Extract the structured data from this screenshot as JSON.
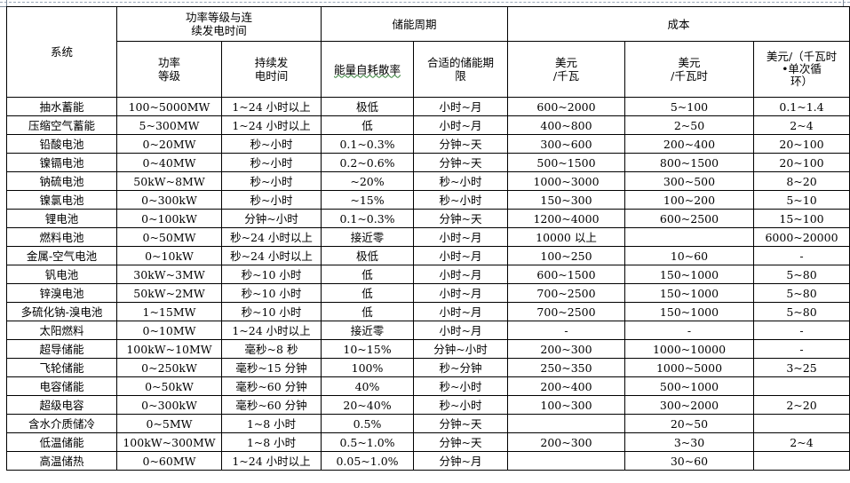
{
  "header": {
    "system": "系统",
    "power_group": "功率等级与连\n续发电时间",
    "storage_group": "储能周期",
    "cost_group": "成本",
    "power_level": "功率\n等级",
    "duration": "持续发\n电时间",
    "self_discharge": "能量自耗散率",
    "suitable_period": "合适的储能期\n限",
    "cost_per_kw": "美元\n/千瓦",
    "cost_per_kwh": "美元\n/千瓦时",
    "cost_per_cycle": "美元/（千瓦时\n•单次循\n环）"
  },
  "rows": [
    [
      "抽水蓄能",
      "100~5000MW",
      "1~24 小时以上",
      "极低",
      "小时~月",
      "600~2000",
      "5~100",
      "0.1~1.4"
    ],
    [
      "压缩空气蓄能",
      "5~300MW",
      "1~24 小时以上",
      "低",
      "小时~月",
      "400~800",
      "2~50",
      "2~4"
    ],
    [
      "铅酸电池",
      "0~20MW",
      "秒~小时",
      "0.1~0.3%",
      "分钟~天",
      "300~600",
      "200~400",
      "20~100"
    ],
    [
      "镍镉电池",
      "0~40MW",
      "秒~小时",
      "0.2~0.6%",
      "分钟~天",
      "500~1500",
      "800~1500",
      "20~100"
    ],
    [
      "钠硫电池",
      "50kW~8MW",
      "秒~小时",
      "~20%",
      "秒~小时",
      "1000~3000",
      "300~500",
      "8~20"
    ],
    [
      "镍氯电池",
      "0~300kW",
      "秒~小时",
      "~15%",
      "秒~小时",
      "150~300",
      "100~200",
      "5~10"
    ],
    [
      "锂电池",
      "0~100kW",
      "分钟~小时",
      "0.1~0.3%",
      "分钟~天",
      "1200~4000",
      "600~2500",
      "15~100"
    ],
    [
      "燃料电池",
      "0~50MW",
      "秒~24 小时以上",
      "接近零",
      "小时~月",
      "10000 以上",
      "",
      "6000~20000"
    ],
    [
      "金属-空气电池",
      "0~10kW",
      "秒~24 小时以上",
      "极低",
      "小时~月",
      "100~250",
      "10~60",
      "-"
    ],
    [
      "钒电池",
      "30kW~3MW",
      "秒~10 小时",
      "低",
      "小时~月",
      "600~1500",
      "150~1000",
      "5~80"
    ],
    [
      "锌溴电池",
      "50kW~2MW",
      "秒~10 小时",
      "低",
      "小时~月",
      "700~2500",
      "150~1000",
      "5~80"
    ],
    [
      "多硫化钠-溴电池",
      "1~15MW",
      "秒~10 小时",
      "低",
      "小时~月",
      "700~2500",
      "150~1000",
      "5~80"
    ],
    [
      "太阳燃料",
      "0~10MW",
      "1~24 小时以上",
      "接近零",
      "小时~月",
      "-",
      "-",
      "-"
    ],
    [
      "超导储能",
      "100kW~10MW",
      "毫秒~8 秒",
      "10~15%",
      "分钟~小时",
      "200~300",
      "1000~10000",
      "-"
    ],
    [
      "飞轮储能",
      "0~250kW",
      "毫秒~15 分钟",
      "100%",
      "秒~分钟",
      "250~350",
      "1000~5000",
      "3~25"
    ],
    [
      "电容储能",
      "0~50kW",
      "毫秒~60 分钟",
      "40%",
      "秒~小时",
      "200~400",
      "500~1000",
      ""
    ],
    [
      "超级电容",
      "0~300kW",
      "毫秒~60 分钟",
      "20~40%",
      "秒~小时",
      "100~300",
      "300~2000",
      "2~20"
    ],
    [
      "含水介质储冷",
      "0~5MW",
      "1~8 小时",
      "0.5%",
      "分钟~天",
      "",
      "20~50",
      ""
    ],
    [
      "低温储能",
      "100kW~300MW",
      "1~8 小时",
      "0.5~1.0%",
      "分钟~天",
      "200~300",
      "3~30",
      "2~4"
    ],
    [
      "高温储热",
      "0~60MW",
      "1~24 小时以上",
      "0.05~1.0%",
      "分钟~月",
      "",
      "30~60",
      ""
    ]
  ]
}
